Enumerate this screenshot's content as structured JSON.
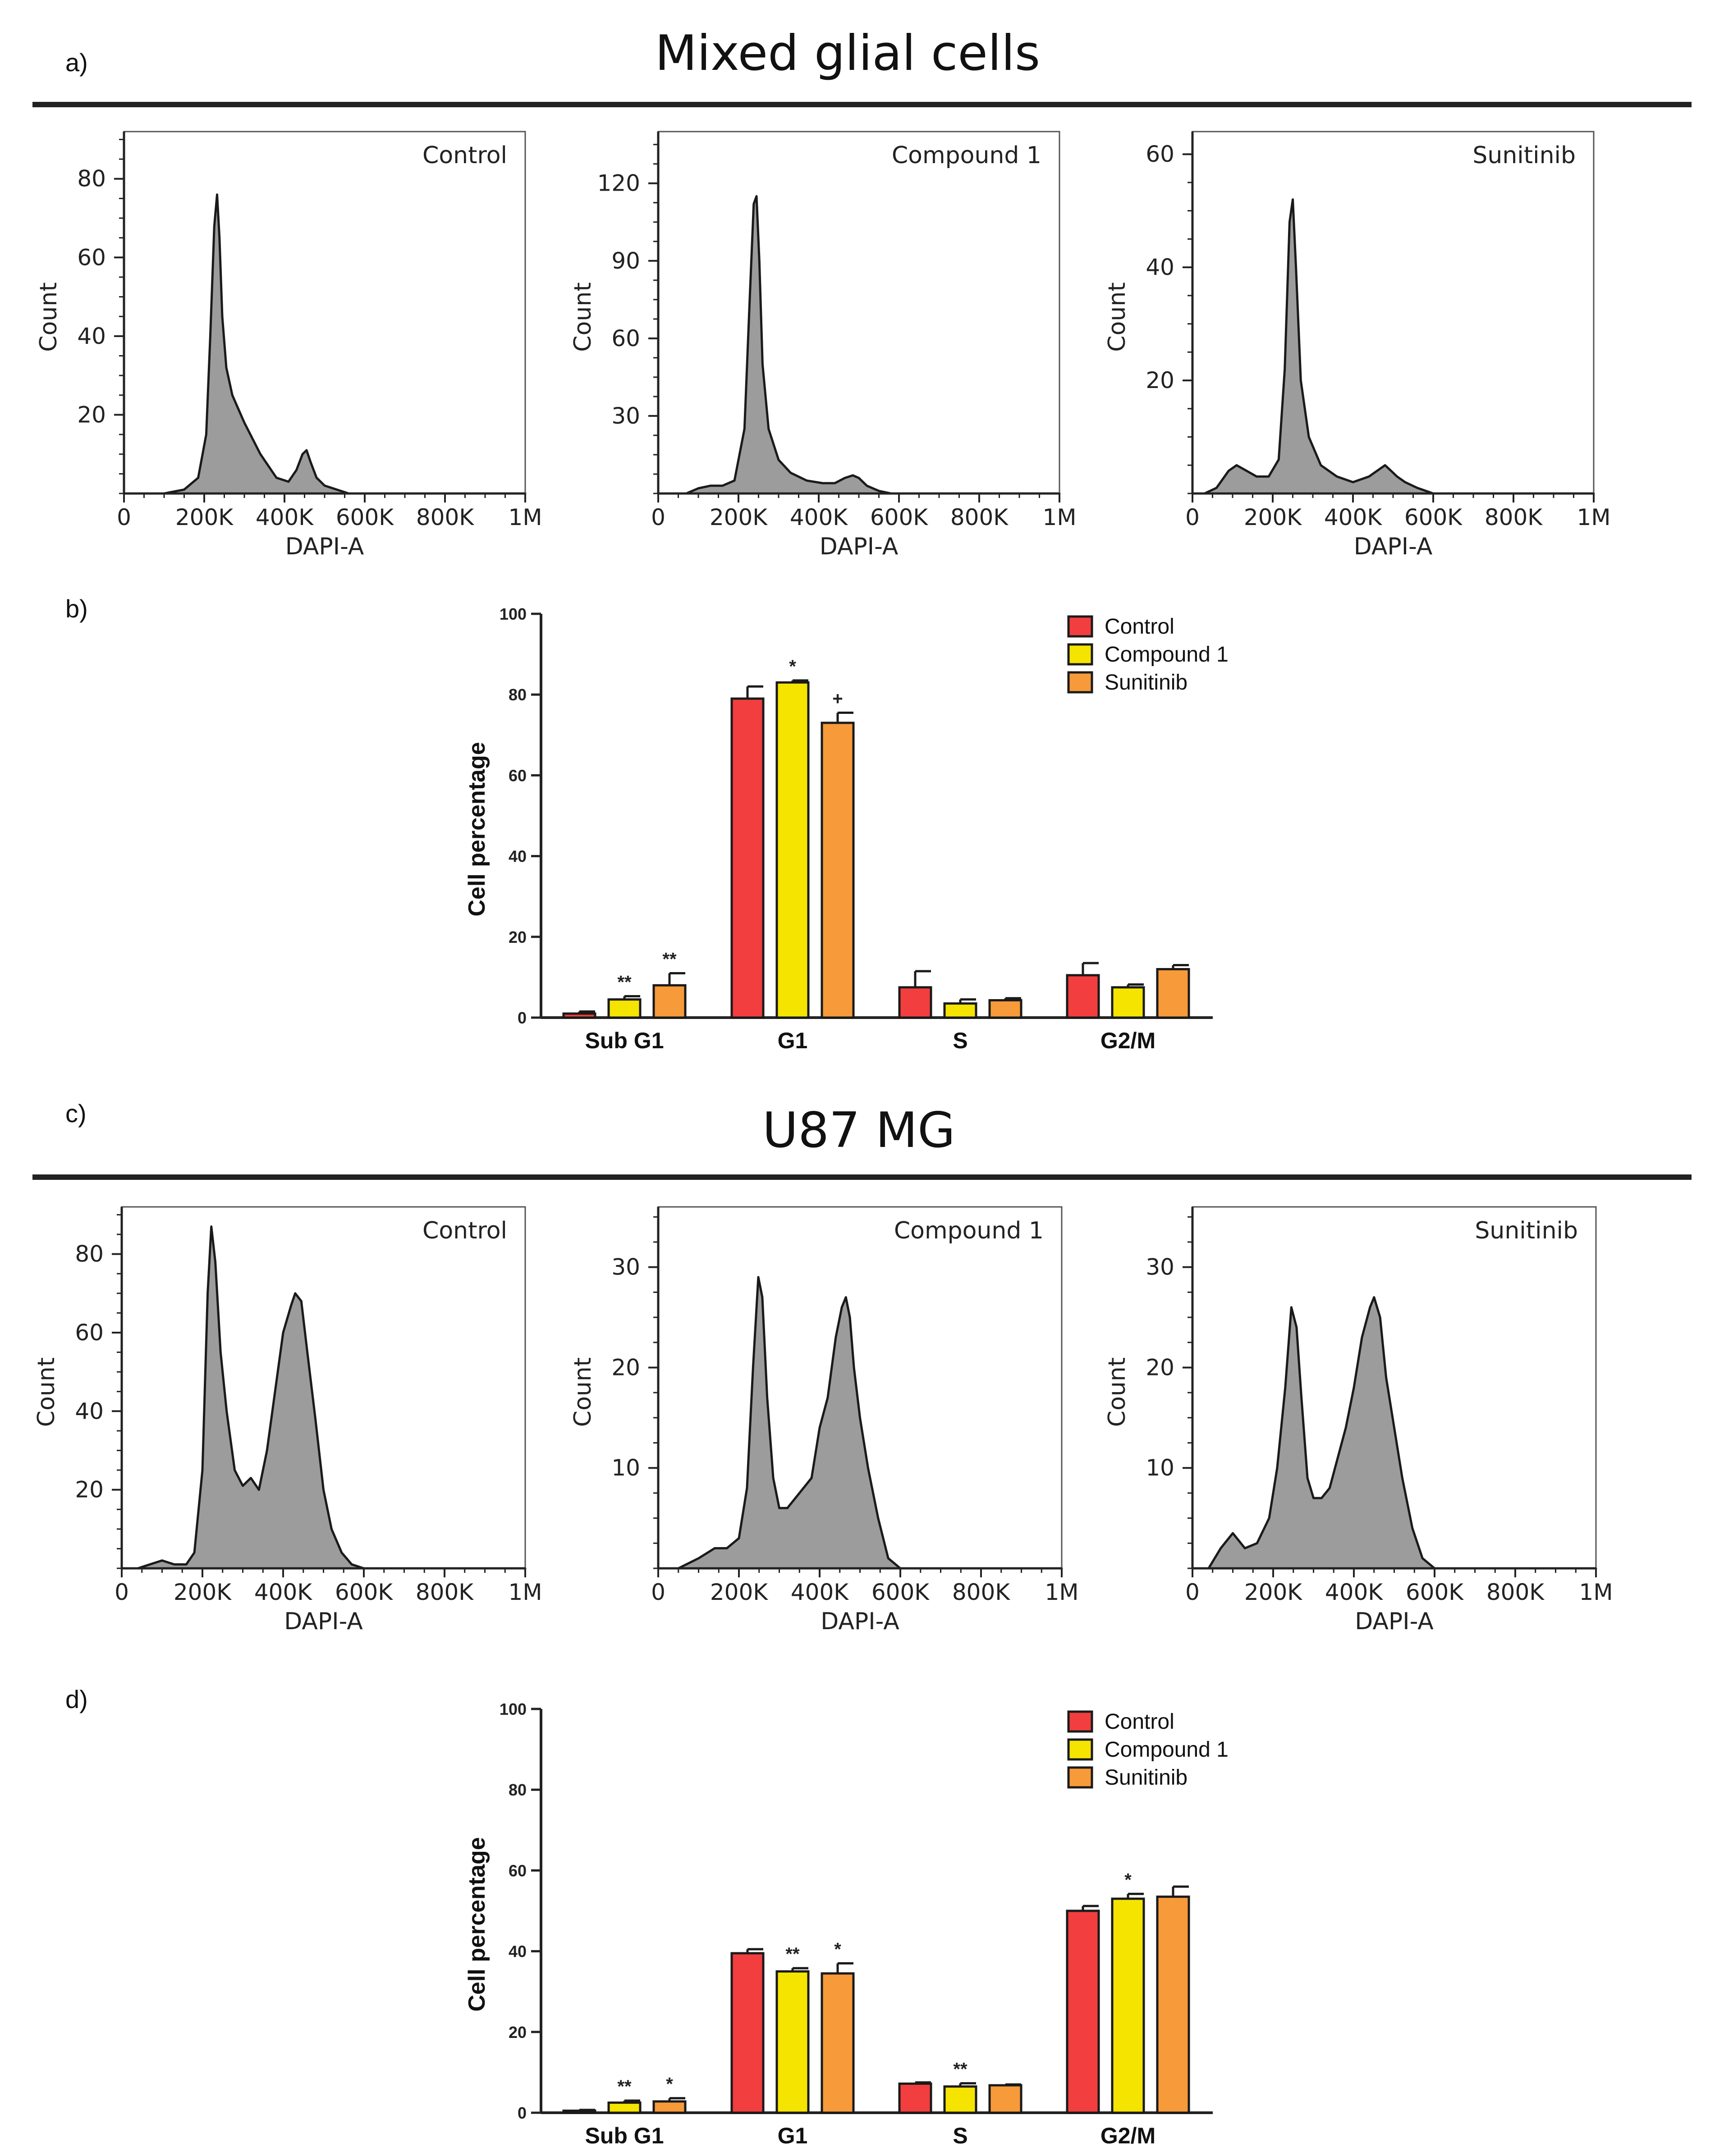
{
  "colors": {
    "control": "#F23E3E",
    "compound1": "#F5E400",
    "sunitinib": "#F79A3A",
    "histogram_fill": "#9C9C9C",
    "axis": "#222222"
  },
  "sections": [
    {
      "letter": "a)",
      "title": "Mixed glial cells"
    },
    {
      "letter": "b)"
    },
    {
      "letter": "c)",
      "title": "U87 MG"
    },
    {
      "letter": "d)"
    }
  ],
  "chart_data": [
    {
      "type": "area",
      "panel": "a",
      "title": "Control",
      "xlabel": "DAPI-A",
      "ylabel": "Count",
      "xlim": [
        0,
        1000000
      ],
      "ylim": [
        0,
        92
      ],
      "xticks": [
        0,
        200000,
        400000,
        600000,
        800000,
        1000000
      ],
      "xtick_labels": [
        "0",
        "200K",
        "400K",
        "600K",
        "800K",
        "1M"
      ],
      "yticks": [
        20,
        40,
        60,
        80
      ],
      "x": [
        0,
        100000,
        150000,
        185000,
        205000,
        215000,
        225000,
        232000,
        238000,
        245000,
        255000,
        270000,
        300000,
        340000,
        380000,
        410000,
        430000,
        445000,
        455000,
        465000,
        480000,
        500000,
        530000,
        560000,
        600000,
        1000000
      ],
      "y": [
        0,
        0,
        1,
        4,
        15,
        40,
        68,
        76,
        65,
        45,
        32,
        25,
        18,
        10,
        4,
        3,
        6,
        10,
        11,
        8,
        4,
        2,
        1,
        0,
        0,
        0
      ]
    },
    {
      "type": "area",
      "panel": "a",
      "title": "Compound 1",
      "xlabel": "DAPI-A",
      "ylabel": "Count",
      "xlim": [
        0,
        1000000
      ],
      "ylim": [
        0,
        140
      ],
      "xticks": [
        0,
        200000,
        400000,
        600000,
        800000,
        1000000
      ],
      "xtick_labels": [
        "0",
        "200K",
        "400K",
        "600K",
        "800K",
        "1M"
      ],
      "yticks": [
        30,
        60,
        90,
        120
      ],
      "x": [
        0,
        70000,
        100000,
        130000,
        160000,
        190000,
        215000,
        228000,
        238000,
        245000,
        252000,
        260000,
        275000,
        300000,
        330000,
        370000,
        410000,
        440000,
        465000,
        485000,
        500000,
        520000,
        550000,
        580000,
        620000,
        1000000
      ],
      "y": [
        0,
        0,
        2,
        3,
        3,
        5,
        25,
        75,
        112,
        115,
        90,
        50,
        25,
        13,
        8,
        5,
        4,
        4,
        6,
        7,
        6,
        3,
        1,
        0,
        0,
        0
      ]
    },
    {
      "type": "area",
      "panel": "a",
      "title": "Sunitinib",
      "xlabel": "DAPI-A",
      "ylabel": "Count",
      "xlim": [
        0,
        1000000
      ],
      "ylim": [
        0,
        64
      ],
      "xticks": [
        0,
        200000,
        400000,
        600000,
        800000,
        1000000
      ],
      "xtick_labels": [
        "0",
        "200K",
        "400K",
        "600K",
        "800K",
        "1M"
      ],
      "yticks": [
        20,
        40,
        60
      ],
      "x": [
        0,
        30000,
        60000,
        90000,
        110000,
        135000,
        160000,
        190000,
        215000,
        230000,
        242000,
        250000,
        258000,
        270000,
        290000,
        320000,
        360000,
        400000,
        440000,
        460000,
        480000,
        495000,
        510000,
        530000,
        560000,
        600000,
        1000000
      ],
      "y": [
        0,
        0,
        1,
        4,
        5,
        4,
        3,
        3,
        6,
        22,
        48,
        52,
        40,
        20,
        10,
        5,
        3,
        2,
        3,
        4,
        5,
        4,
        3,
        2,
        1,
        0,
        0
      ]
    },
    {
      "type": "bar",
      "panel": "b",
      "categories": [
        "Sub G1",
        "G1",
        "S",
        "G2/M"
      ],
      "ylabel": "Cell percentage",
      "ylim": [
        0,
        100
      ],
      "yticks": [
        0,
        20,
        40,
        60,
        80,
        100
      ],
      "legend_position": "top-right",
      "series": [
        {
          "name": "Control",
          "values": [
            1,
            79,
            7.5,
            10.5
          ],
          "errors": [
            0.5,
            3,
            4,
            3
          ],
          "annotations": [
            "",
            "",
            "",
            ""
          ]
        },
        {
          "name": "Compound 1",
          "values": [
            4.5,
            83,
            3.5,
            7.5
          ],
          "errors": [
            0.8,
            0.5,
            1,
            0.7
          ],
          "annotations": [
            "**",
            "*",
            "",
            ""
          ]
        },
        {
          "name": "Sunitinib",
          "values": [
            8,
            73,
            4.3,
            12
          ],
          "errors": [
            3,
            2.5,
            0.5,
            1
          ],
          "annotations": [
            "**",
            "+",
            "",
            ""
          ]
        }
      ]
    },
    {
      "type": "area",
      "panel": "c",
      "title": "Control",
      "xlabel": "DAPI-A",
      "ylabel": "Count",
      "xlim": [
        0,
        1000000
      ],
      "ylim": [
        0,
        92
      ],
      "xticks": [
        0,
        200000,
        400000,
        600000,
        800000,
        1000000
      ],
      "xtick_labels": [
        "0",
        "200K",
        "400K",
        "600K",
        "800K",
        "1M"
      ],
      "yticks": [
        20,
        40,
        60,
        80
      ],
      "x": [
        0,
        40000,
        70000,
        100000,
        130000,
        160000,
        180000,
        200000,
        213000,
        222000,
        232000,
        245000,
        260000,
        280000,
        300000,
        320000,
        340000,
        360000,
        380000,
        400000,
        420000,
        430000,
        445000,
        460000,
        480000,
        500000,
        520000,
        545000,
        570000,
        600000,
        1000000
      ],
      "y": [
        0,
        0,
        1,
        2,
        1,
        1,
        4,
        25,
        70,
        87,
        78,
        55,
        40,
        25,
        21,
        23,
        20,
        30,
        45,
        60,
        67,
        70,
        68,
        55,
        38,
        20,
        10,
        4,
        1,
        0,
        0
      ]
    },
    {
      "type": "area",
      "panel": "c",
      "title": "Compound 1",
      "xlabel": "DAPI-A",
      "ylabel": "Count",
      "xlim": [
        0,
        1000000
      ],
      "ylim": [
        0,
        36
      ],
      "xticks": [
        0,
        200000,
        400000,
        600000,
        800000,
        1000000
      ],
      "xtick_labels": [
        "0",
        "200K",
        "400K",
        "600K",
        "800K",
        "1M"
      ],
      "yticks": [
        10,
        20,
        30
      ],
      "x": [
        0,
        50000,
        100000,
        140000,
        170000,
        200000,
        220000,
        235000,
        248000,
        258000,
        270000,
        285000,
        300000,
        320000,
        340000,
        360000,
        380000,
        400000,
        420000,
        440000,
        455000,
        465000,
        475000,
        485000,
        500000,
        520000,
        545000,
        570000,
        600000,
        1000000
      ],
      "y": [
        0,
        0,
        1,
        2,
        2,
        3,
        8,
        20,
        29,
        27,
        17,
        9,
        6,
        6,
        7,
        8,
        9,
        14,
        17,
        23,
        26,
        27,
        25,
        20,
        15,
        10,
        5,
        1,
        0,
        0
      ]
    },
    {
      "type": "area",
      "panel": "c",
      "title": "Sunitinib",
      "xlabel": "DAPI-A",
      "ylabel": "Count",
      "xlim": [
        0,
        1000000
      ],
      "ylim": [
        0,
        36
      ],
      "xticks": [
        0,
        200000,
        400000,
        600000,
        800000,
        1000000
      ],
      "xtick_labels": [
        "0",
        "200K",
        "400K",
        "600K",
        "800K",
        "1M"
      ],
      "yticks": [
        10,
        20,
        30
      ],
      "x": [
        0,
        40000,
        70000,
        100000,
        130000,
        160000,
        190000,
        210000,
        230000,
        245000,
        258000,
        270000,
        285000,
        300000,
        320000,
        340000,
        360000,
        380000,
        400000,
        420000,
        440000,
        450000,
        465000,
        480000,
        500000,
        520000,
        545000,
        570000,
        600000,
        1000000
      ],
      "y": [
        0,
        0,
        2,
        3.5,
        2,
        2.5,
        5,
        10,
        18,
        26,
        24,
        17,
        9,
        7,
        7,
        8,
        11,
        14,
        18,
        23,
        26,
        27,
        25,
        19,
        14,
        9,
        4,
        1,
        0,
        0
      ]
    },
    {
      "type": "bar",
      "panel": "d",
      "categories": [
        "Sub G1",
        "G1",
        "S",
        "G2/M"
      ],
      "ylabel": "Cell percentage",
      "ylim": [
        0,
        100
      ],
      "yticks": [
        0,
        20,
        40,
        60,
        80,
        100
      ],
      "legend_position": "top-right",
      "series": [
        {
          "name": "Control",
          "values": [
            0.5,
            39.5,
            7.2,
            50
          ],
          "errors": [
            0.2,
            1,
            0.3,
            1.2
          ],
          "annotations": [
            "",
            "",
            "",
            ""
          ]
        },
        {
          "name": "Compound 1",
          "values": [
            2.5,
            35,
            6.5,
            53
          ],
          "errors": [
            0.5,
            0.8,
            0.8,
            1.2
          ],
          "annotations": [
            "**",
            "**",
            "**",
            "*"
          ]
        },
        {
          "name": "Sunitinib",
          "values": [
            2.8,
            34.5,
            6.8,
            53.5
          ],
          "errors": [
            0.8,
            2.5,
            0.2,
            2.5
          ],
          "annotations": [
            "*",
            "*",
            "",
            ""
          ]
        }
      ]
    }
  ]
}
